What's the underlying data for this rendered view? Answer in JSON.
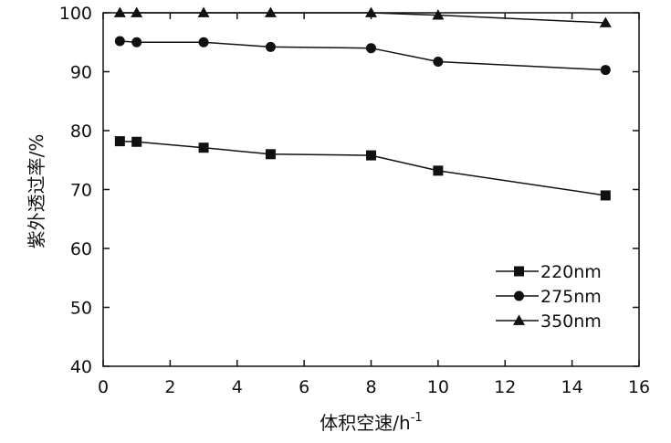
{
  "chart_data": {
    "type": "line",
    "xlabel": "体积空速/h",
    "xlabel_sup": "-1",
    "ylabel": "紫外透过率/%",
    "xlim": [
      0,
      16
    ],
    "ylim": [
      40,
      100
    ],
    "xticks": [
      "0",
      "2",
      "4",
      "6",
      "8",
      "10",
      "12",
      "14",
      "16"
    ],
    "yticks": [
      "40",
      "50",
      "60",
      "70",
      "80",
      "90",
      "100"
    ],
    "grid": false,
    "legend_position": "bottom-right",
    "series": [
      {
        "name": "220nm",
        "marker": "square",
        "x": [
          0.5,
          1,
          3,
          5,
          8,
          10,
          15
        ],
        "y": [
          78.2,
          78.1,
          77.1,
          76.0,
          75.8,
          73.2,
          69.0
        ]
      },
      {
        "name": "275nm",
        "marker": "circle",
        "x": [
          0.5,
          1,
          3,
          5,
          8,
          10,
          15
        ],
        "y": [
          95.2,
          95.0,
          95.0,
          94.2,
          94.0,
          91.7,
          90.3
        ]
      },
      {
        "name": "350nm",
        "marker": "triangle",
        "x": [
          0.5,
          1,
          3,
          5,
          8,
          10,
          15
        ],
        "y": [
          100.0,
          100.0,
          100.0,
          100.0,
          100.0,
          99.6,
          98.3
        ]
      }
    ],
    "line_color": "#111111"
  }
}
